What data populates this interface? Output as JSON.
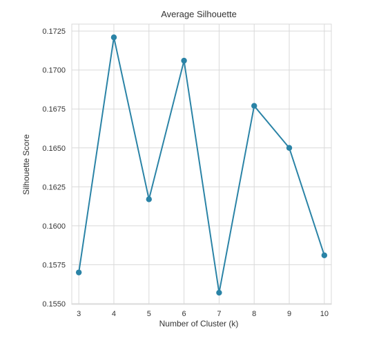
{
  "chart_data": {
    "type": "line",
    "title": "Average Silhouette",
    "xlabel": "Number of Cluster (k)",
    "ylabel": "Silhouette Score",
    "x": [
      3,
      4,
      5,
      6,
      7,
      8,
      9,
      10
    ],
    "series": [
      {
        "values": [
          0.157,
          0.1721,
          0.1617,
          0.1706,
          0.1557,
          0.1677,
          0.165,
          0.1581
        ]
      }
    ],
    "xticks": [
      "3",
      "4",
      "5",
      "6",
      "7",
      "8",
      "9",
      "10"
    ],
    "yticks": [
      "0.1550",
      "0.1575",
      "0.1600",
      "0.1625",
      "0.1650",
      "0.1675",
      "0.1700",
      "0.1725"
    ],
    "ytick_values": [
      0.155,
      0.1575,
      0.16,
      0.1625,
      0.165,
      0.1675,
      0.17,
      0.1725
    ],
    "xlim": [
      2.8,
      10.2
    ],
    "ylim": [
      0.15495,
      0.17295
    ],
    "grid": true,
    "markers": true,
    "colors": {
      "line": "#2a83a6",
      "grid": "#d9d9d9",
      "background": "#ffffff"
    }
  }
}
